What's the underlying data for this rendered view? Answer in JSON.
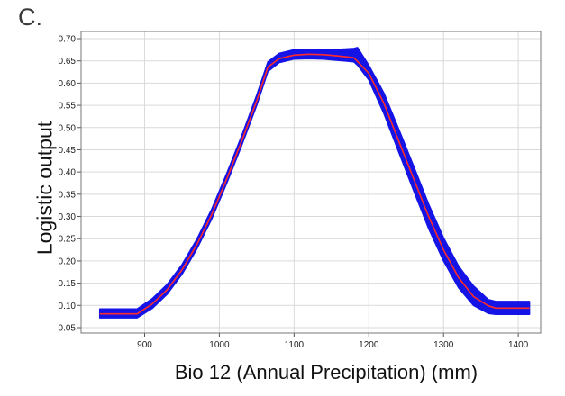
{
  "panel_label": "C.",
  "chart_data": {
    "type": "line",
    "title": "",
    "xlabel": "Bio 12 (Annual Precipitation) (mm)",
    "ylabel": "Logistic output",
    "xlim": [
      815,
      1430
    ],
    "ylim": [
      0.05,
      0.7
    ],
    "xticks": [
      900,
      1000,
      1100,
      1200,
      1300,
      1400
    ],
    "yticks": [
      0.05,
      0.1,
      0.15,
      0.2,
      0.25,
      0.3,
      0.35,
      0.4,
      0.45,
      0.5,
      0.55,
      0.6,
      0.65,
      0.7
    ],
    "ytick_labels": [
      "0.05",
      "0.10",
      "0.15",
      "0.20",
      "0.25",
      "0.30",
      "0.35",
      "0.40",
      "0.45",
      "0.50",
      "0.55",
      "0.60",
      "0.65",
      "0.70"
    ],
    "grid": true,
    "series": [
      {
        "color": "#ff2a2a",
        "x": [
          840,
          890,
          910,
          930,
          950,
          970,
          990,
          1010,
          1030,
          1050,
          1065,
          1080,
          1100,
          1120,
          1140,
          1160,
          1180,
          1200,
          1220,
          1240,
          1260,
          1280,
          1300,
          1320,
          1340,
          1360,
          1370,
          1415
        ],
        "y": [
          0.081,
          0.081,
          0.103,
          0.135,
          0.18,
          0.237,
          0.305,
          0.385,
          0.47,
          0.56,
          0.636,
          0.655,
          0.663,
          0.665,
          0.664,
          0.661,
          0.657,
          0.622,
          0.555,
          0.47,
          0.385,
          0.3,
          0.225,
          0.163,
          0.12,
          0.099,
          0.094,
          0.094
        ]
      }
    ],
    "band": {
      "color": "#1414e6",
      "x": [
        840,
        890,
        910,
        930,
        950,
        970,
        990,
        1010,
        1030,
        1050,
        1065,
        1080,
        1100,
        1120,
        1140,
        1160,
        1180,
        1185,
        1200,
        1220,
        1240,
        1260,
        1280,
        1300,
        1320,
        1340,
        1360,
        1370,
        1415
      ],
      "upper": [
        0.092,
        0.092,
        0.115,
        0.147,
        0.192,
        0.249,
        0.317,
        0.397,
        0.482,
        0.573,
        0.648,
        0.667,
        0.675,
        0.675,
        0.675,
        0.676,
        0.678,
        0.68,
        0.64,
        0.578,
        0.497,
        0.413,
        0.328,
        0.252,
        0.189,
        0.144,
        0.113,
        0.109,
        0.109
      ],
      "lower": [
        0.072,
        0.072,
        0.093,
        0.125,
        0.17,
        0.227,
        0.295,
        0.375,
        0.46,
        0.55,
        0.626,
        0.646,
        0.654,
        0.655,
        0.654,
        0.651,
        0.648,
        0.64,
        0.607,
        0.532,
        0.445,
        0.358,
        0.273,
        0.2,
        0.14,
        0.1,
        0.082,
        0.08,
        0.08
      ]
    }
  }
}
